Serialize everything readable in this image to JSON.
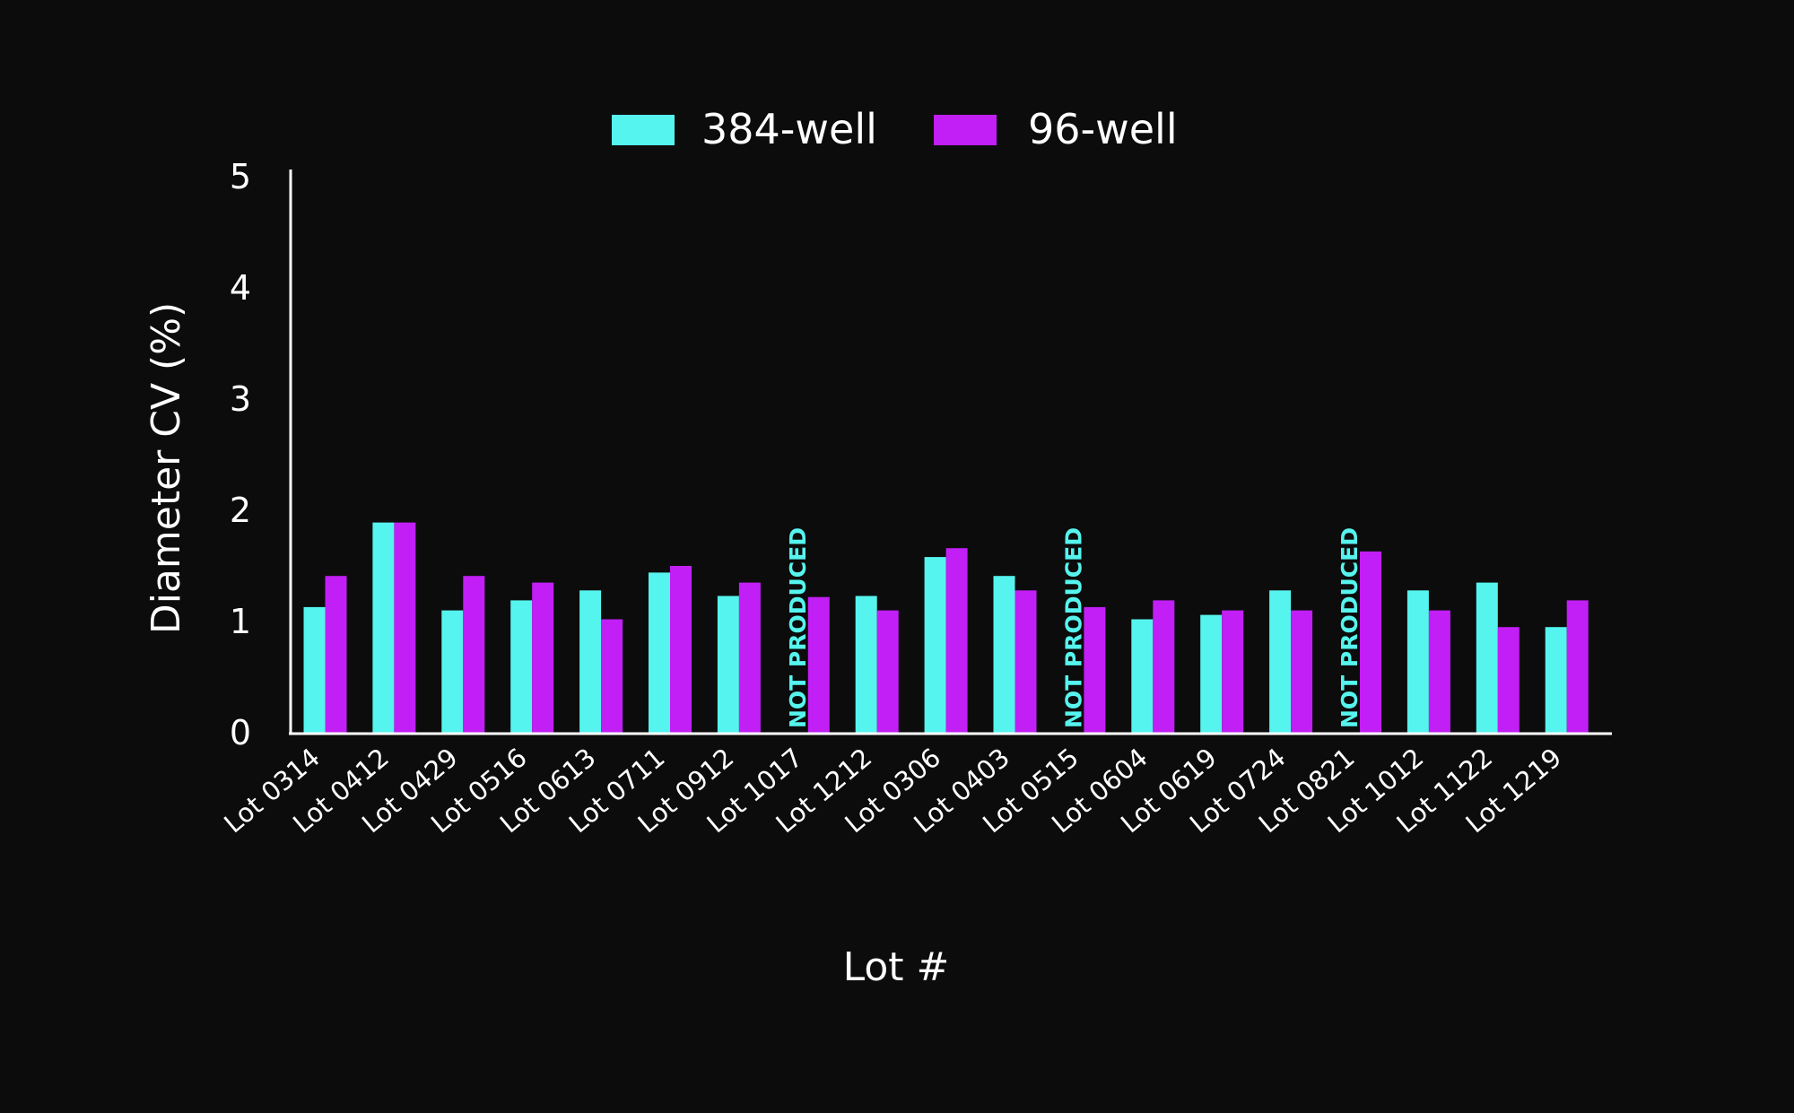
{
  "chart_data": {
    "type": "bar",
    "title": "",
    "xlabel": "Lot #",
    "ylabel": "Diameter CV (%)",
    "ylim": [
      0,
      5
    ],
    "yticks": [
      "0",
      "1",
      "2",
      "3",
      "4",
      "5"
    ],
    "categories": [
      "Lot 0314",
      "Lot 0412",
      "Lot 0429",
      "Lot 0516",
      "Lot 0613",
      "Lot 0711",
      "Lot 0912",
      "Lot 1017",
      "Lot 1212",
      "Lot 0306",
      "Lot 0403",
      "Lot 0515",
      "Lot 0604",
      "Lot 0619",
      "Lot 0724",
      "Lot 0821",
      "Lot 1012",
      "Lot 1122",
      "Lot 1219"
    ],
    "series": [
      {
        "name": "384-well",
        "color": "#56f4ee",
        "values": [
          1.13,
          1.89,
          1.1,
          1.19,
          1.28,
          1.44,
          1.23,
          null,
          1.23,
          1.58,
          1.41,
          null,
          1.02,
          1.06,
          1.28,
          null,
          1.28,
          1.35,
          0.95
        ]
      },
      {
        "name": "96-well",
        "color": "#c11ff5",
        "values": [
          1.41,
          1.89,
          1.41,
          1.35,
          1.02,
          1.5,
          1.35,
          1.22,
          1.1,
          1.66,
          1.28,
          1.13,
          1.19,
          1.1,
          1.1,
          1.63,
          1.1,
          0.95,
          1.19
        ]
      }
    ],
    "annotations": [
      {
        "category": "Lot 1017",
        "series": "384-well",
        "text": "NOT PRODUCED"
      },
      {
        "category": "Lot 0515",
        "series": "384-well",
        "text": "NOT PRODUCED"
      },
      {
        "category": "Lot 0821",
        "series": "384-well",
        "text": "NOT PRODUCED"
      }
    ],
    "legend_position": "top-center",
    "grid": false
  }
}
